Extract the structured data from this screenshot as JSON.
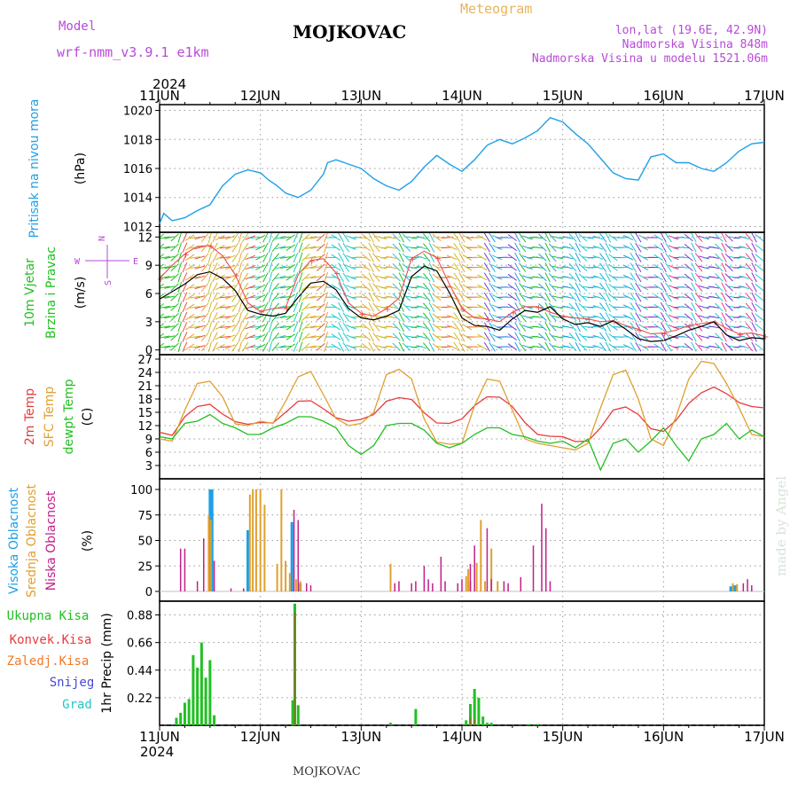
{
  "header": {
    "model_label": "Model",
    "model_name": "wrf-nmm_v3.9.1 e1km",
    "station": "MOJKOVAC",
    "product": "Meteogram",
    "lonlat": "lon,lat (19.6E, 42.9N)",
    "elevation": "Nadmorska Visina 848m",
    "model_elevation": "Nadmorska Visina u modelu 1521.06m"
  },
  "footer": {
    "station": "MOJKOVAC",
    "credit": "made by Angel"
  },
  "colors": {
    "pressure": "#1ea0e6",
    "temp2m": "#e83b3b",
    "sfc": "#e0a030",
    "dewpt": "#22c022",
    "high_cloud": "#1ea0e6",
    "mid_cloud": "#e0a030",
    "low_cloud": "#c0208a",
    "total_precip": "#22c022",
    "conv_precip": "#e83b3b",
    "frozen_precip": "#f07828",
    "snow": "#4646d8",
    "hail": "#20c8c8",
    "wind_speed": "#000000",
    "wind_gust": "#e85050"
  },
  "chart_data": [
    {
      "id": "time_axis",
      "type": "axis",
      "year": "2024",
      "categories": [
        "11JUN",
        "12JUN",
        "13JUN",
        "14JUN",
        "15JUN",
        "16JUN",
        "17JUN"
      ],
      "xlim_hours": [
        0,
        144
      ]
    },
    {
      "id": "pressure",
      "type": "line",
      "title": "Pritisak na nivou mora",
      "ylabel": "(hPa)",
      "ylim": [
        1011.6,
        1020.4
      ],
      "yticks": [
        1012,
        1014,
        1016,
        1018,
        1020
      ],
      "grid": true,
      "series": [
        {
          "x": [
            0,
            1,
            3,
            6,
            9,
            12,
            15,
            18,
            21,
            24,
            26,
            28,
            30,
            33,
            36,
            39,
            40,
            42,
            45,
            48,
            51,
            54,
            57,
            60,
            63,
            66,
            69,
            72,
            75,
            78,
            81,
            84,
            87,
            90,
            93,
            96,
            99,
            102,
            105,
            108,
            111,
            114,
            117,
            120,
            123,
            126,
            129,
            132,
            135,
            138,
            141,
            144
          ],
          "values": [
            1012.2,
            1012.9,
            1012.4,
            1012.6,
            1013.1,
            1013.5,
            1014.8,
            1015.6,
            1015.9,
            1015.7,
            1015.2,
            1014.8,
            1014.3,
            1014.0,
            1014.5,
            1015.6,
            1016.4,
            1016.6,
            1016.3,
            1016.0,
            1015.3,
            1014.8,
            1014.5,
            1015.1,
            1016.1,
            1016.9,
            1016.3,
            1015.8,
            1016.6,
            1017.6,
            1018.0,
            1017.7,
            1018.1,
            1018.6,
            1019.5,
            1019.2,
            1018.4,
            1017.7,
            1016.7,
            1015.7,
            1015.3,
            1015.2,
            1016.8,
            1017.0,
            1016.4,
            1016.4,
            1016.0,
            1015.8,
            1016.4,
            1017.2,
            1017.7,
            1017.8
          ]
        }
      ]
    },
    {
      "id": "wind",
      "type": "line",
      "title": "10m Vjetar",
      "subtitle": "Brzina i Pravac",
      "ylabel": "(m/s)",
      "ylim": [
        -0.5,
        12.5
      ],
      "yticks": [
        0,
        3,
        6,
        9,
        12
      ],
      "compass": {
        "n": "N",
        "s": "S",
        "e": "E",
        "w": "W"
      },
      "band_colors": [
        "#e85040",
        "#f0a030",
        "#c0c020",
        "#20c8c8",
        "#22c022",
        "#8030d8",
        "#1ea0e6",
        "#e83b8a"
      ],
      "speed": {
        "x": [
          0,
          3,
          6,
          9,
          12,
          15,
          18,
          21,
          24,
          27,
          30,
          33,
          36,
          39,
          42,
          45,
          48,
          51,
          54,
          57,
          60,
          63,
          66,
          69,
          72,
          75,
          78,
          81,
          84,
          87,
          90,
          93,
          96,
          99,
          102,
          105,
          108,
          111,
          114,
          117,
          120,
          123,
          126,
          129,
          132,
          135,
          138,
          141,
          144
        ],
        "values": [
          5.4,
          6.2,
          7.0,
          8.0,
          8.3,
          7.6,
          6.3,
          4.2,
          3.8,
          3.6,
          3.9,
          5.6,
          7.1,
          7.3,
          6.4,
          4.4,
          3.4,
          3.2,
          3.6,
          4.2,
          7.8,
          8.9,
          8.4,
          6.1,
          3.4,
          2.6,
          2.5,
          2.1,
          3.3,
          4.2,
          4.0,
          4.6,
          3.3,
          2.7,
          2.9,
          2.5,
          3.1,
          2.2,
          1.2,
          0.9,
          1.0,
          1.5,
          2.1,
          2.5,
          3.0,
          1.6,
          1.0,
          1.3,
          1.2
        ]
      },
      "gust": {
        "x": [
          0,
          3,
          6,
          9,
          12,
          15,
          18,
          21,
          24,
          27,
          30,
          33,
          36,
          39,
          42,
          45,
          48,
          51,
          54,
          57,
          60,
          63,
          66,
          69,
          72,
          75,
          78,
          81,
          84,
          87,
          90,
          93,
          96,
          99,
          102,
          105,
          108,
          111,
          114,
          117,
          120,
          123,
          126,
          129,
          132,
          135,
          138,
          141,
          144
        ],
        "values": [
          7.6,
          9.0,
          10.2,
          11.0,
          11.1,
          10.0,
          8.0,
          5.0,
          4.1,
          4.4,
          4.5,
          8.0,
          9.5,
          9.7,
          8.2,
          5.0,
          3.9,
          3.6,
          4.4,
          5.5,
          9.7,
          10.5,
          9.8,
          7.0,
          4.4,
          3.4,
          3.3,
          3.0,
          4.0,
          4.6,
          4.6,
          4.0,
          3.6,
          3.4,
          3.3,
          3.0,
          3.1,
          2.6,
          2.2,
          1.7,
          1.8,
          2.1,
          2.6,
          2.8,
          3.0,
          2.3,
          1.7,
          1.8,
          1.5
        ]
      }
    },
    {
      "id": "temperature",
      "type": "line",
      "titles": [
        "2m Temp",
        "SFC Temp",
        "dewpt Temp"
      ],
      "ylabel": "(C)",
      "ylim": [
        0,
        28
      ],
      "yticks": [
        3,
        6,
        9,
        12,
        15,
        18,
        21,
        24,
        27
      ],
      "series": [
        {
          "name": "2m Temp",
          "x": [
            0,
            3,
            6,
            9,
            12,
            15,
            18,
            21,
            24,
            27,
            30,
            33,
            36,
            39,
            42,
            45,
            48,
            51,
            54,
            57,
            60,
            63,
            66,
            69,
            72,
            75,
            78,
            81,
            84,
            87,
            90,
            93,
            96,
            99,
            102,
            105,
            108,
            111,
            114,
            117,
            120,
            123,
            126,
            129,
            132,
            135,
            138,
            141,
            144
          ],
          "values": [
            10.5,
            9.8,
            14.0,
            16.3,
            16.8,
            14.6,
            12.9,
            12.3,
            12.7,
            12.6,
            15.0,
            17.5,
            17.6,
            15.8,
            13.8,
            13.0,
            13.4,
            14.5,
            17.5,
            18.3,
            17.9,
            14.9,
            12.6,
            12.5,
            13.5,
            16.5,
            18.5,
            18.4,
            16.3,
            12.7,
            10.0,
            9.6,
            9.5,
            8.4,
            8.5,
            11.5,
            15.5,
            16.2,
            14.5,
            11.3,
            10.7,
            13.2,
            17.0,
            19.4,
            20.7,
            19.2,
            17.2,
            16.3,
            16.0
          ]
        },
        {
          "name": "SFC Temp",
          "x": [
            0,
            3,
            6,
            9,
            12,
            15,
            18,
            21,
            24,
            27,
            30,
            33,
            36,
            39,
            42,
            45,
            48,
            51,
            54,
            57,
            60,
            63,
            66,
            69,
            72,
            75,
            78,
            81,
            84,
            87,
            90,
            93,
            96,
            99,
            102,
            105,
            108,
            111,
            114,
            117,
            120,
            123,
            126,
            129,
            132,
            135,
            138,
            141,
            144
          ],
          "values": [
            9.0,
            8.5,
            15.5,
            21.5,
            22.0,
            18.5,
            12.4,
            12.0,
            13.0,
            12.5,
            17.5,
            23.0,
            24.2,
            19.0,
            13.6,
            12.0,
            12.5,
            15.0,
            23.5,
            24.7,
            22.5,
            13.5,
            8.3,
            7.8,
            8.0,
            16.5,
            22.5,
            22.0,
            15.5,
            9.0,
            8.0,
            7.5,
            7.0,
            6.5,
            8.0,
            16.0,
            23.5,
            24.5,
            18.0,
            9.0,
            7.5,
            14.0,
            22.5,
            26.5,
            26.0,
            21.5,
            16.0,
            10.0,
            9.5
          ]
        },
        {
          "name": "dewpt Temp",
          "x": [
            0,
            3,
            6,
            9,
            12,
            15,
            18,
            21,
            24,
            27,
            30,
            33,
            36,
            39,
            42,
            45,
            48,
            51,
            54,
            57,
            60,
            63,
            66,
            69,
            72,
            75,
            78,
            81,
            84,
            87,
            90,
            93,
            96,
            99,
            102,
            105,
            108,
            111,
            114,
            117,
            120,
            123,
            126,
            129,
            132,
            135,
            138,
            141,
            144
          ],
          "values": [
            9.5,
            9.0,
            12.5,
            13.0,
            14.5,
            12.5,
            11.5,
            10.0,
            10.0,
            11.5,
            12.5,
            14.0,
            14.0,
            13.0,
            11.5,
            7.5,
            5.5,
            7.5,
            12.0,
            12.5,
            12.5,
            11.0,
            8.0,
            7.0,
            8.0,
            10.0,
            11.5,
            11.5,
            10.0,
            9.5,
            8.5,
            8.0,
            8.5,
            7.0,
            9.0,
            2.0,
            8.0,
            9.0,
            6.0,
            8.5,
            11.5,
            7.5,
            4.0,
            9.0,
            10.0,
            12.5,
            9.0,
            11.0,
            9.5
          ]
        }
      ]
    },
    {
      "id": "cloud",
      "type": "bar",
      "titles": [
        "Visoka Oblacnost",
        "Srednja Oblacnost",
        "Niska Oblacnost"
      ],
      "ylabel": "(%)",
      "ylim": [
        0,
        100
      ],
      "yticks": [
        0,
        25,
        50,
        75,
        100
      ],
      "series": [
        {
          "name": "Visoka Oblacnost",
          "x": [
            12,
            12.5,
            21,
            31.5,
            33.5,
            136,
            137
          ],
          "values": [
            100,
            100,
            60,
            68,
            8,
            5,
            6
          ]
        },
        {
          "name": "Srednja Oblacnost",
          "x": [
            11.7,
            12.2,
            21.5,
            22.2,
            23,
            24,
            25,
            28,
            29,
            30,
            31,
            32.5,
            33.5,
            55,
            73,
            73.5,
            74,
            75.5,
            76.5,
            77.5,
            79,
            80.5,
            136.5,
            137.5
          ],
          "values": [
            75,
            70,
            95,
            100,
            100,
            100,
            85,
            27,
            100,
            30,
            18,
            12,
            10,
            27,
            15,
            22,
            10,
            28,
            70,
            10,
            42,
            10,
            8,
            7
          ]
        },
        {
          "name": "Niska Oblacnost",
          "x": [
            5,
            6,
            9,
            10.5,
            13,
            17,
            20,
            32,
            33,
            35,
            36,
            56,
            57,
            60,
            61,
            63,
            64,
            65,
            67,
            68,
            71,
            72,
            74,
            75,
            78,
            79,
            82,
            83,
            86,
            89,
            91,
            92,
            93,
            139,
            140,
            141
          ],
          "values": [
            42,
            42,
            10,
            52,
            30,
            3,
            3,
            80,
            70,
            8,
            6,
            8,
            10,
            8,
            10,
            25,
            12,
            8,
            34,
            10,
            8,
            12,
            27,
            45,
            62,
            12,
            10,
            8,
            14,
            45,
            86,
            62,
            10,
            8,
            12,
            6
          ]
        }
      ]
    },
    {
      "id": "precip",
      "type": "bar",
      "titles": [
        "Ukupna Kisa",
        "Konvek.Kisa",
        "Zaledj.Kisa",
        "Snijeg",
        "Grad"
      ],
      "ylabel": "1hr Precip (mm)",
      "ylim": [
        0,
        0.99
      ],
      "yticks": [
        0.22,
        0.44,
        0.66,
        0.88
      ],
      "series": [
        {
          "name": "Ukupna Kisa",
          "x": [
            4,
            5,
            6,
            7,
            8,
            9,
            10,
            11,
            12,
            13,
            31.7,
            32.2,
            33,
            55,
            61,
            73,
            74,
            75,
            76,
            77,
            78,
            79,
            88,
            90
          ],
          "values": [
            0.06,
            0.1,
            0.18,
            0.21,
            0.56,
            0.46,
            0.66,
            0.38,
            0.52,
            0.08,
            0.2,
            0.97,
            0.16,
            0.02,
            0.13,
            0.04,
            0.17,
            0.29,
            0.22,
            0.07,
            0.02,
            0.02,
            0.01,
            0.01
          ]
        },
        {
          "name": "Konvek.Kisa",
          "x": [
            32.2,
            74,
            75
          ],
          "values": [
            0.9,
            0.06,
            0.05
          ]
        }
      ]
    }
  ]
}
